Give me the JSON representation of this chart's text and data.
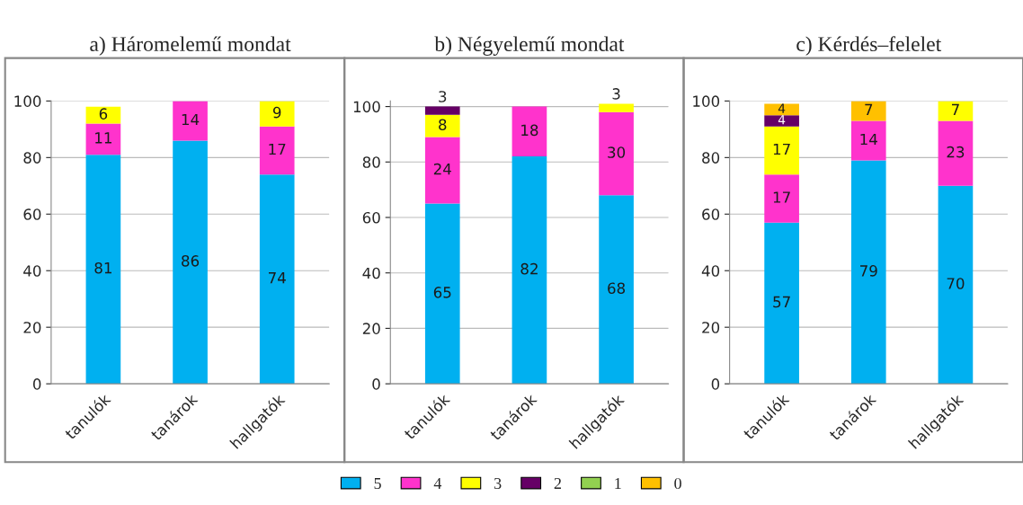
{
  "chart_data": [
    {
      "type": "bar",
      "title": "a) Háromelemű mondat",
      "categories": [
        "tanulók",
        "tanárok",
        "hallgatók"
      ],
      "stacked": true,
      "data_labels": true,
      "ylim": [
        0,
        100
      ],
      "yticks": [
        0,
        20,
        40,
        60,
        80,
        100
      ],
      "grid": "y",
      "legend": "bottom",
      "series": [
        {
          "name": "5",
          "color": "#00b0f0",
          "values": [
            81,
            86,
            74
          ]
        },
        {
          "name": "4",
          "color": "#ff33cc",
          "values": [
            11,
            14,
            17
          ]
        },
        {
          "name": "3",
          "color": "#ffff00",
          "values": [
            6,
            null,
            9
          ]
        },
        {
          "name": "2",
          "color": "#660066",
          "values": [
            null,
            null,
            null
          ]
        },
        {
          "name": "1",
          "color": "#92d050",
          "values": [
            null,
            null,
            null
          ]
        },
        {
          "name": "0",
          "color": "#ffc000",
          "values": [
            null,
            null,
            null
          ]
        }
      ]
    },
    {
      "type": "bar",
      "title": "b) Négyelemű mondat",
      "categories": [
        "tanulók",
        "tanárok",
        "hallgatók"
      ],
      "stacked": true,
      "data_labels": true,
      "ylim": [
        0,
        102
      ],
      "yticks": [
        0,
        20,
        40,
        60,
        80,
        100
      ],
      "grid": "y",
      "series": [
        {
          "color": "#00b0f0",
          "values": [
            65,
            82,
            68
          ]
        },
        {
          "color": "#ff33cc",
          "values": [
            24,
            18,
            30
          ]
        },
        {
          "color": "#ffff00",
          "values": [
            8,
            null,
            3
          ]
        },
        {
          "color": "#660066",
          "values": [
            3,
            null,
            null
          ]
        }
      ]
    },
    {
      "type": "bar",
      "title": "c) Kérdés–felelet",
      "categories": [
        "tanulók",
        "tanárok",
        "hallgatók"
      ],
      "stacked": true,
      "data_labels": true,
      "ylim": [
        0,
        100
      ],
      "yticks": [
        0,
        20,
        40,
        60,
        80,
        100
      ],
      "grid": "y",
      "series": [
        {
          "color": "#00b0f0",
          "values": [
            57,
            79,
            70
          ]
        },
        {
          "color": "#ff33cc",
          "values": [
            17,
            14,
            23
          ]
        },
        {
          "color": "#ffff00",
          "values": [
            17,
            null,
            7
          ]
        },
        {
          "color": "#660066",
          "values": [
            4,
            null,
            null
          ]
        },
        {
          "color": "#ffc000",
          "values": [
            4,
            7,
            null
          ]
        }
      ]
    }
  ]
}
